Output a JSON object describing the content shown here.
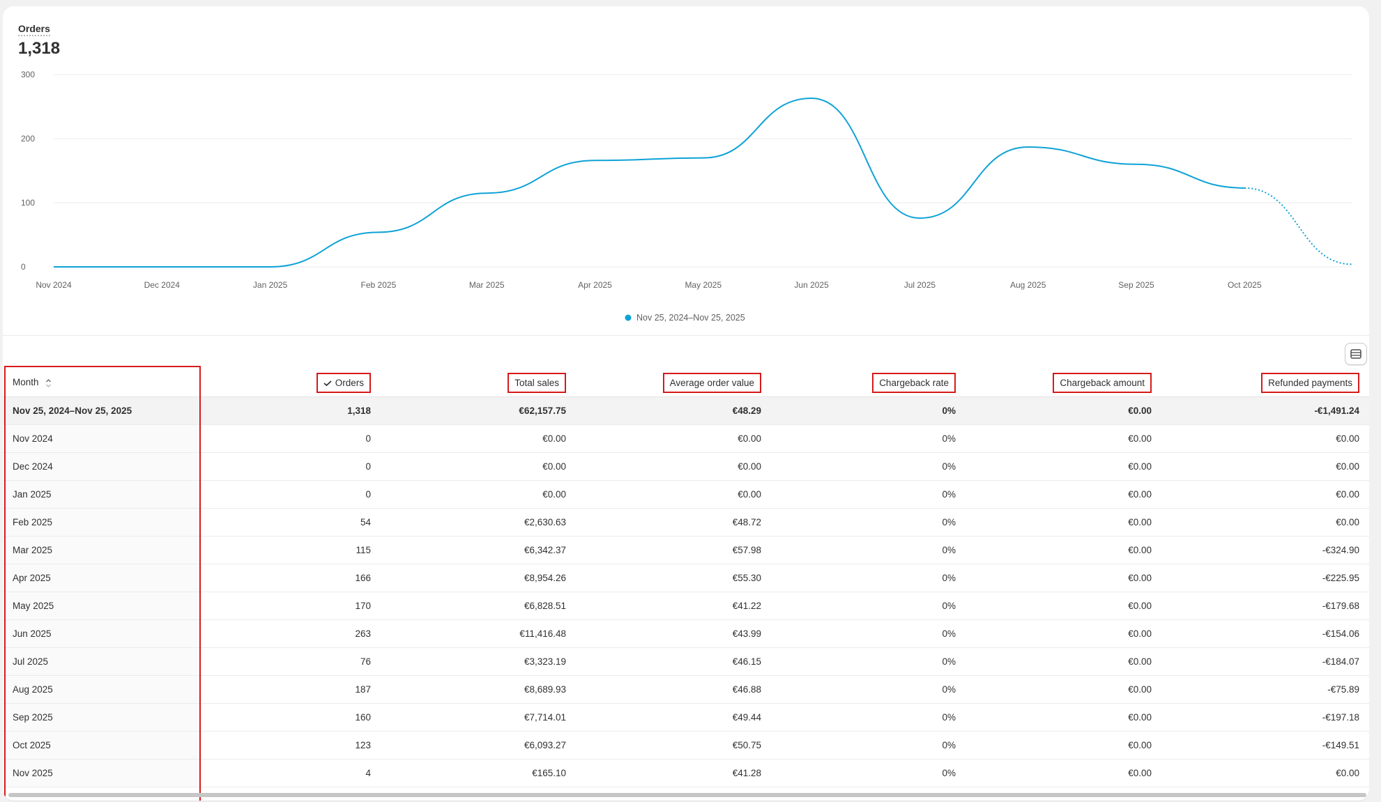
{
  "metric": {
    "label": "Orders",
    "value": "1,318"
  },
  "colors": {
    "line": "#0ea2d6",
    "highlight": "#d51a1a",
    "grid": "#ebebeb"
  },
  "chart_data": {
    "type": "line",
    "title": "",
    "xlabel": "",
    "ylabel": "",
    "ylim": [
      0,
      300
    ],
    "y_ticks": [
      "0",
      "100",
      "200",
      "300"
    ],
    "categories": [
      "Nov 2024",
      "Dec 2024",
      "Jan 2025",
      "Feb 2025",
      "Mar 2025",
      "Apr 2025",
      "May 2025",
      "Jun 2025",
      "Jul 2025",
      "Aug 2025",
      "Sep 2025",
      "Oct 2025",
      "Nov 2025"
    ],
    "x_tick_labels": [
      "Nov 2024",
      "Dec 2024",
      "Jan 2025",
      "Feb 2025",
      "Mar 2025",
      "Apr 2025",
      "May 2025",
      "Jun 2025",
      "Jul 2025",
      "Aug 2025",
      "Sep 2025",
      "Oct 2025"
    ],
    "series": [
      {
        "name": "Nov 25, 2024–Nov 25, 2025",
        "values": [
          0,
          0,
          0,
          54,
          115,
          166,
          170,
          263,
          76,
          187,
          160,
          123,
          4
        ],
        "dashed_from_index": 11
      }
    ],
    "legend": "bottom-center",
    "grid": true
  },
  "table": {
    "columns": [
      "Month",
      "Orders",
      "Total sales",
      "Average order value",
      "Chargeback rate",
      "Chargeback amount",
      "Refunded payments"
    ],
    "summary": [
      "Nov 25, 2024–Nov 25, 2025",
      "1,318",
      "€62,157.75",
      "€48.29",
      "0%",
      "€0.00",
      "-€1,491.24"
    ],
    "rows": [
      [
        "Nov 2024",
        "0",
        "€0.00",
        "€0.00",
        "0%",
        "€0.00",
        "€0.00"
      ],
      [
        "Dec 2024",
        "0",
        "€0.00",
        "€0.00",
        "0%",
        "€0.00",
        "€0.00"
      ],
      [
        "Jan 2025",
        "0",
        "€0.00",
        "€0.00",
        "0%",
        "€0.00",
        "€0.00"
      ],
      [
        "Feb 2025",
        "54",
        "€2,630.63",
        "€48.72",
        "0%",
        "€0.00",
        "€0.00"
      ],
      [
        "Mar 2025",
        "115",
        "€6,342.37",
        "€57.98",
        "0%",
        "€0.00",
        "-€324.90"
      ],
      [
        "Apr 2025",
        "166",
        "€8,954.26",
        "€55.30",
        "0%",
        "€0.00",
        "-€225.95"
      ],
      [
        "May 2025",
        "170",
        "€6,828.51",
        "€41.22",
        "0%",
        "€0.00",
        "-€179.68"
      ],
      [
        "Jun 2025",
        "263",
        "€11,416.48",
        "€43.99",
        "0%",
        "€0.00",
        "-€154.06"
      ],
      [
        "Jul 2025",
        "76",
        "€3,323.19",
        "€46.15",
        "0%",
        "€0.00",
        "-€184.07"
      ],
      [
        "Aug 2025",
        "187",
        "€8,689.93",
        "€46.88",
        "0%",
        "€0.00",
        "-€75.89"
      ],
      [
        "Sep 2025",
        "160",
        "€7,714.01",
        "€49.44",
        "0%",
        "€0.00",
        "-€197.18"
      ],
      [
        "Oct 2025",
        "123",
        "€6,093.27",
        "€50.75",
        "0%",
        "€0.00",
        "-€149.51"
      ],
      [
        "Nov 2025",
        "4",
        "€165.10",
        "€41.28",
        "0%",
        "€0.00",
        "€0.00"
      ]
    ]
  }
}
